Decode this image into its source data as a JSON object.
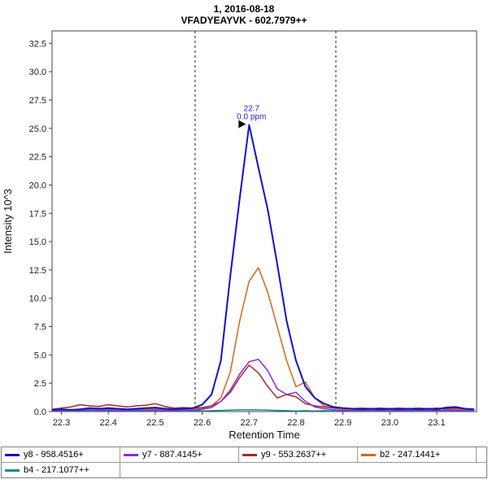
{
  "header": {
    "line1": "1, 2016-08-18",
    "line2": "VFADYEAYVK - 602.7979++"
  },
  "chart_data": {
    "type": "line",
    "title": "1, 2016-08-18 — VFADYEAYVK - 602.7979++",
    "xlabel": "Retention Time",
    "ylabel": "Intensity 10^3",
    "xlim": [
      22.28,
      23.185
    ],
    "ylim": [
      0,
      33.6
    ],
    "x_ticks": [
      22.3,
      22.4,
      22.5,
      22.6,
      22.7,
      22.8,
      22.9,
      23.0,
      23.1
    ],
    "y_ticks": [
      0.0,
      2.5,
      5.0,
      7.5,
      10.0,
      12.5,
      15.0,
      17.5,
      20.0,
      22.5,
      25.0,
      27.5,
      30.0,
      32.5
    ],
    "grid": false,
    "legend_position": "bottom",
    "legend_row_break": 4,
    "boundaries": [
      22.585,
      22.885
    ],
    "annotation": {
      "x": 22.7,
      "y": 25.3,
      "label": "22.7",
      "sublabel": "0.0 ppm"
    },
    "annotation_color": "#2222cc",
    "x": [
      22.28,
      22.3,
      22.32,
      22.34,
      22.36,
      22.38,
      22.4,
      22.42,
      22.44,
      22.46,
      22.48,
      22.5,
      22.52,
      22.54,
      22.56,
      22.58,
      22.6,
      22.62,
      22.64,
      22.66,
      22.68,
      22.7,
      22.72,
      22.74,
      22.76,
      22.78,
      22.8,
      22.82,
      22.84,
      22.86,
      22.88,
      22.9,
      22.92,
      22.94,
      22.96,
      22.98,
      23.0,
      23.02,
      23.04,
      23.06,
      23.08,
      23.1,
      23.12,
      23.14,
      23.16,
      23.18
    ],
    "series": [
      {
        "id": "y8",
        "name": "y8 - 958.4516+",
        "color": "#1111cc",
        "width": 2,
        "y": [
          0.15,
          0.2,
          0.15,
          0.2,
          0.3,
          0.25,
          0.3,
          0.25,
          0.2,
          0.25,
          0.3,
          0.35,
          0.25,
          0.2,
          0.25,
          0.3,
          0.6,
          1.5,
          4.5,
          12.0,
          18.8,
          25.3,
          21.5,
          17.8,
          13.0,
          8.0,
          4.5,
          2.2,
          1.2,
          0.7,
          0.4,
          0.3,
          0.25,
          0.2,
          0.25,
          0.2,
          0.25,
          0.2,
          0.25,
          0.2,
          0.25,
          0.2,
          0.35,
          0.4,
          0.25,
          0.2
        ]
      },
      {
        "id": "y7",
        "name": "y7 - 887.4145+",
        "color": "#8a2be2",
        "width": 1.5,
        "y": [
          0.1,
          0.1,
          0.15,
          0.1,
          0.15,
          0.1,
          0.15,
          0.1,
          0.1,
          0.15,
          0.1,
          0.15,
          0.1,
          0.1,
          0.15,
          0.1,
          0.2,
          0.35,
          0.9,
          1.9,
          3.3,
          4.4,
          4.6,
          3.6,
          2.0,
          1.5,
          1.7,
          0.9,
          0.4,
          0.25,
          0.15,
          0.1,
          0.1,
          0.15,
          0.1,
          0.1,
          0.15,
          0.1,
          0.1,
          0.15,
          0.1,
          0.1,
          0.15,
          0.1,
          0.1,
          0.1
        ]
      },
      {
        "id": "y9",
        "name": "y9 - 553.2637++",
        "color": "#a52a2a",
        "width": 1.5,
        "y": [
          0.2,
          0.3,
          0.4,
          0.6,
          0.5,
          0.45,
          0.6,
          0.5,
          0.4,
          0.5,
          0.55,
          0.7,
          0.45,
          0.3,
          0.35,
          0.3,
          0.35,
          0.5,
          0.9,
          1.7,
          3.0,
          4.1,
          3.4,
          2.2,
          1.2,
          1.5,
          1.3,
          0.7,
          0.5,
          0.4,
          0.3,
          0.3,
          0.25,
          0.3,
          0.25,
          0.3,
          0.25,
          0.3,
          0.25,
          0.3,
          0.25,
          0.3,
          0.25,
          0.3,
          0.25,
          0.2
        ]
      },
      {
        "id": "b2",
        "name": "b2 - 247.1441+",
        "color": "#d2691e",
        "width": 1.5,
        "y": [
          0.1,
          0.15,
          0.1,
          0.15,
          0.2,
          0.15,
          0.2,
          0.15,
          0.1,
          0.15,
          0.2,
          0.25,
          0.15,
          0.1,
          0.15,
          0.2,
          0.25,
          0.5,
          1.2,
          3.5,
          8.0,
          11.5,
          12.7,
          10.5,
          7.5,
          4.5,
          2.2,
          2.6,
          1.2,
          0.5,
          0.3,
          0.2,
          0.15,
          0.1,
          0.15,
          0.1,
          0.15,
          0.1,
          0.15,
          0.1,
          0.15,
          0.1,
          0.15,
          0.2,
          0.15,
          0.1
        ]
      },
      {
        "id": "b4",
        "name": "b4 - 217.1077++",
        "color": "#0f8f8f",
        "width": 1.5,
        "y": [
          0.05,
          0.08,
          0.05,
          0.08,
          0.05,
          0.08,
          0.05,
          0.08,
          0.05,
          0.08,
          0.05,
          0.08,
          0.05,
          0.08,
          0.05,
          0.08,
          0.05,
          0.08,
          0.1,
          0.12,
          0.15,
          0.15,
          0.15,
          0.12,
          0.1,
          0.08,
          0.05,
          0.08,
          0.05,
          0.08,
          0.05,
          0.08,
          0.05,
          0.08,
          0.05,
          0.08,
          0.05,
          0.08,
          0.05,
          0.08,
          0.05,
          0.08,
          0.05,
          0.08,
          0.05,
          0.05
        ]
      }
    ]
  }
}
